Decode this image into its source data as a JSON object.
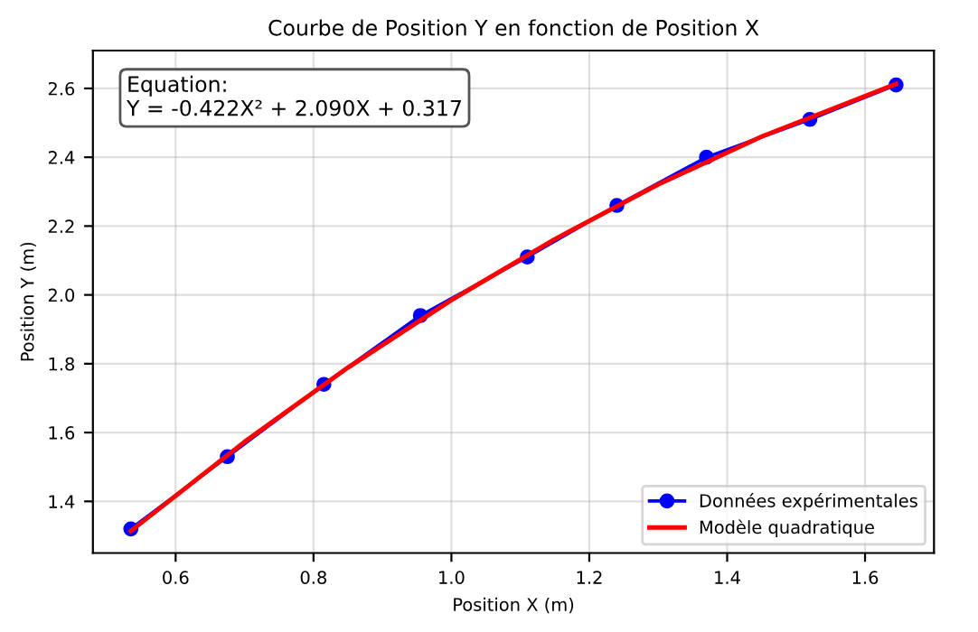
{
  "chart_data": {
    "type": "line",
    "title": "Courbe de Position Y en fonction de Position X",
    "xlabel": "Position X (m)",
    "ylabel": "Position Y (m)",
    "annotations": [
      "Equation:\nY = -0.422X² + 2.090X + 0.317"
    ],
    "series": [
      {
        "name": "Données expérimentales",
        "color": "#0000ff",
        "marker": "circle",
        "x": [
          0.535,
          0.675,
          0.815,
          0.955,
          1.11,
          1.24,
          1.37,
          1.52,
          1.645
        ],
        "values": [
          1.32,
          1.53,
          1.74,
          1.94,
          2.11,
          2.26,
          2.4,
          2.51,
          2.61
        ]
      },
      {
        "name": "Modèle quadratique",
        "color": "#ff0000",
        "marker": "none",
        "x": [
          0.535,
          0.7,
          0.85,
          1.0,
          1.15,
          1.3,
          1.45,
          1.645
        ],
        "values": [
          1.314,
          1.573,
          1.789,
          1.985,
          2.162,
          2.321,
          2.46,
          2.613
        ]
      }
    ],
    "xlim": [
      0.48,
      1.7
    ],
    "ylim": [
      1.25,
      2.71
    ],
    "xticks": [
      0.6,
      0.8,
      {
        "value": 1.0,
        "label": "1.0"
      },
      1.2,
      1.4,
      1.6
    ],
    "yticks": [
      1.4,
      1.6,
      1.8,
      {
        "value": 2.0,
        "label": "2.0"
      },
      2.2,
      2.4,
      2.6
    ],
    "grid": true,
    "legend": "bottom right"
  }
}
